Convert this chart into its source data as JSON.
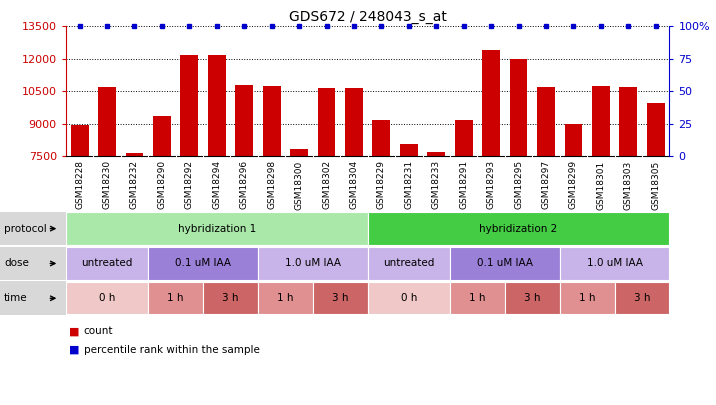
{
  "title": "GDS672 / 248043_s_at",
  "samples": [
    "GSM18228",
    "GSM18230",
    "GSM18232",
    "GSM18290",
    "GSM18292",
    "GSM18294",
    "GSM18296",
    "GSM18298",
    "GSM18300",
    "GSM18302",
    "GSM18304",
    "GSM18229",
    "GSM18231",
    "GSM18233",
    "GSM18291",
    "GSM18293",
    "GSM18295",
    "GSM18297",
    "GSM18299",
    "GSM18301",
    "GSM18303",
    "GSM18305"
  ],
  "counts": [
    8950,
    10700,
    7650,
    9350,
    12150,
    12150,
    10800,
    10750,
    7800,
    10650,
    10650,
    9150,
    8050,
    7700,
    9150,
    12400,
    12000,
    10700,
    9000,
    10750,
    10700,
    9950
  ],
  "percentile": [
    100,
    100,
    100,
    100,
    100,
    100,
    100,
    100,
    100,
    100,
    100,
    100,
    100,
    100,
    100,
    100,
    100,
    100,
    100,
    100,
    100,
    100
  ],
  "ylim_left": [
    7500,
    13500
  ],
  "ylim_right": [
    0,
    100
  ],
  "yticks_left": [
    7500,
    9000,
    10500,
    12000,
    13500
  ],
  "yticks_right": [
    0,
    25,
    50,
    75,
    100
  ],
  "ytick_right_labels": [
    "0",
    "25",
    "50",
    "75",
    "100%"
  ],
  "bar_color": "#cc0000",
  "percentile_color": "#0000cc",
  "bg_color": "#ffffff",
  "protocol_row": {
    "label": "protocol",
    "groups": [
      {
        "text": "hybridization 1",
        "start": 0,
        "end": 11,
        "color": "#aae8aa"
      },
      {
        "text": "hybridization 2",
        "start": 11,
        "end": 22,
        "color": "#44cc44"
      }
    ]
  },
  "dose_row": {
    "label": "dose",
    "groups": [
      {
        "text": "untreated",
        "start": 0,
        "end": 3,
        "color": "#c8b4e8"
      },
      {
        "text": "0.1 uM IAA",
        "start": 3,
        "end": 7,
        "color": "#9b80d8"
      },
      {
        "text": "1.0 uM IAA",
        "start": 7,
        "end": 11,
        "color": "#c8b4e8"
      },
      {
        "text": "untreated",
        "start": 11,
        "end": 14,
        "color": "#c8b4e8"
      },
      {
        "text": "0.1 uM IAA",
        "start": 14,
        "end": 18,
        "color": "#9b80d8"
      },
      {
        "text": "1.0 uM IAA",
        "start": 18,
        "end": 22,
        "color": "#c8b4e8"
      }
    ]
  },
  "time_row": {
    "label": "time",
    "groups": [
      {
        "text": "0 h",
        "start": 0,
        "end": 3,
        "color": "#f0c8c8"
      },
      {
        "text": "1 h",
        "start": 3,
        "end": 5,
        "color": "#e09090"
      },
      {
        "text": "3 h",
        "start": 5,
        "end": 7,
        "color": "#cc6666"
      },
      {
        "text": "1 h",
        "start": 7,
        "end": 9,
        "color": "#e09090"
      },
      {
        "text": "3 h",
        "start": 9,
        "end": 11,
        "color": "#cc6666"
      },
      {
        "text": "0 h",
        "start": 11,
        "end": 14,
        "color": "#f0c8c8"
      },
      {
        "text": "1 h",
        "start": 14,
        "end": 16,
        "color": "#e09090"
      },
      {
        "text": "3 h",
        "start": 16,
        "end": 18,
        "color": "#cc6666"
      },
      {
        "text": "1 h",
        "start": 18,
        "end": 20,
        "color": "#e09090"
      },
      {
        "text": "3 h",
        "start": 20,
        "end": 22,
        "color": "#cc6666"
      }
    ]
  },
  "legend_items": [
    {
      "color": "#cc0000",
      "label": "count"
    },
    {
      "color": "#0000cc",
      "label": "percentile rank within the sample"
    }
  ],
  "xticklabel_bg": "#d8d8d8"
}
